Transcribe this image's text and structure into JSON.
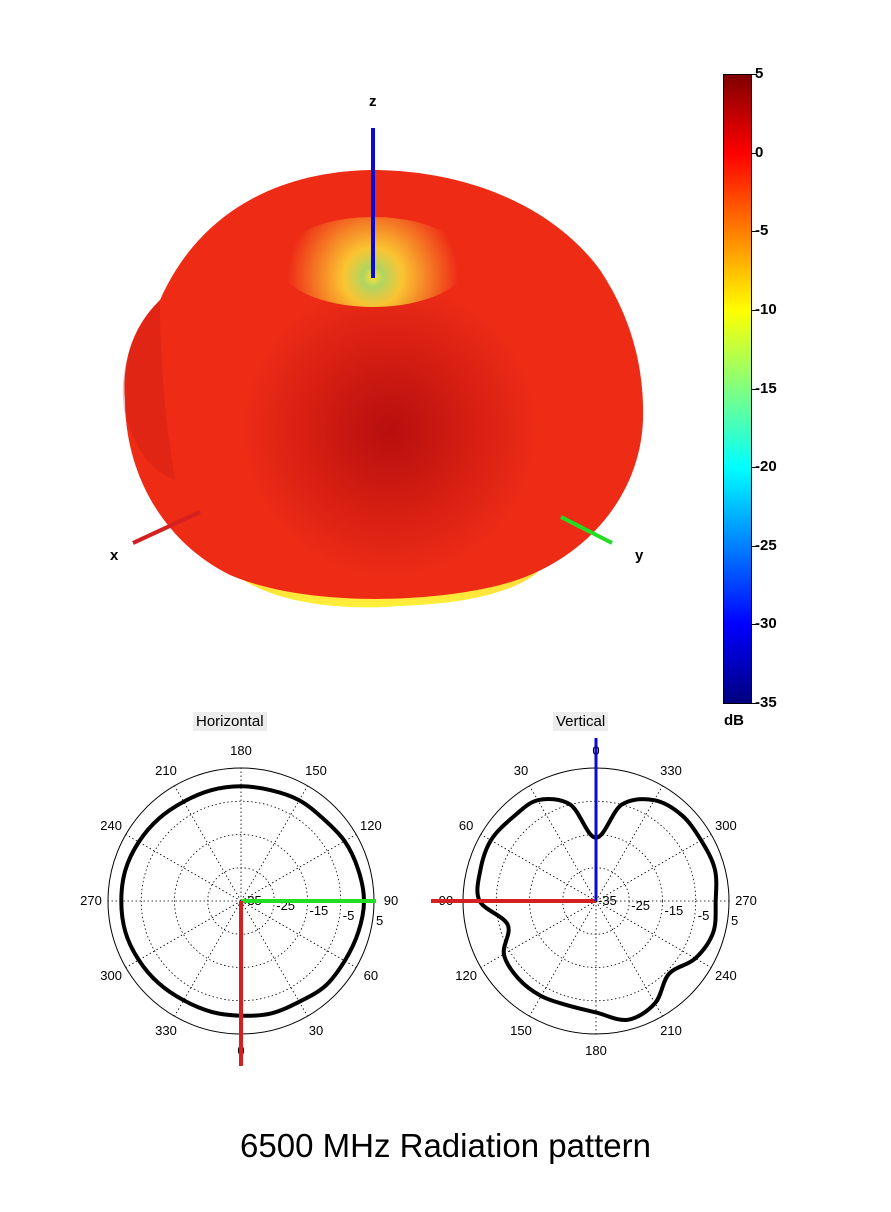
{
  "caption": "6500 MHz Radiation pattern",
  "colors": {
    "pattern_red": "#ee2c16",
    "pattern_dark": "#b70e0e",
    "pattern_yellow": "#fff23a",
    "axis_x": "#d42020",
    "axis_y": "#22dd22",
    "axis_z": "#0a0ad0"
  },
  "pattern_3d": {
    "axis_labels": {
      "x": "x",
      "y": "y",
      "z": "z"
    },
    "colormap": "jet"
  },
  "colorbar": {
    "min": -35,
    "max": 5,
    "ticks": [
      "5",
      "0",
      "-5",
      "-10",
      "-15",
      "-20",
      "-25",
      "-30",
      "-35"
    ],
    "unit": "dB"
  },
  "chart_data": [
    {
      "type": "polar",
      "title": "Horizontal",
      "angle_labels": [
        "0",
        "30",
        "60",
        "90",
        "120",
        "150",
        "180",
        "210",
        "240",
        "270",
        "300",
        "330"
      ],
      "angle_zero_direction": "bottom",
      "angle_direction": "counterclockwise",
      "radial_range_db": [
        -35,
        5
      ],
      "radial_tick_labels": [
        "-35",
        "-25",
        "-15",
        "-5",
        "5"
      ],
      "grid": true,
      "series": [
        {
          "angles_deg": [
            0,
            15,
            30,
            45,
            60,
            75,
            90,
            105,
            120,
            135,
            150,
            165,
            180,
            195,
            210,
            225,
            240,
            255,
            270,
            285,
            300,
            315,
            330,
            345
          ],
          "gain_db": [
            -0.5,
            0.0,
            0.0,
            1.0,
            1.0,
            1.5,
            2.0,
            1.5,
            1.0,
            0.0,
            0.0,
            -0.5,
            -0.5,
            -0.5,
            -0.5,
            0.0,
            0.5,
            1.0,
            1.0,
            1.0,
            0.5,
            0.0,
            -0.5,
            -0.5
          ]
        }
      ]
    },
    {
      "type": "polar",
      "title": "Vertical",
      "angle_labels": [
        "0",
        "30",
        "60",
        "90",
        "120",
        "150",
        "180",
        "210",
        "240",
        "270",
        "300",
        "330"
      ],
      "angle_zero_direction": "top",
      "angle_direction": "counterclockwise",
      "radial_range_db": [
        -35,
        5
      ],
      "radial_tick_labels": [
        "-35",
        "-25",
        "-15",
        "-5",
        "5"
      ],
      "grid": true,
      "series": [
        {
          "angles_deg": [
            0,
            15,
            30,
            45,
            60,
            75,
            90,
            105,
            120,
            135,
            150,
            165,
            180,
            195,
            210,
            225,
            240,
            255,
            270,
            285,
            300,
            315,
            330,
            345
          ],
          "gain_db": [
            -16.0,
            -5.0,
            0.0,
            0.5,
            1.5,
            1.0,
            0.0,
            -7.5,
            -3.0,
            -2.0,
            -2.0,
            -2.5,
            -1.5,
            2.0,
            0.5,
            -4.0,
            -0.5,
            1.5,
            1.0,
            2.0,
            1.5,
            1.5,
            0.0,
            -5.0
          ]
        }
      ]
    }
  ]
}
